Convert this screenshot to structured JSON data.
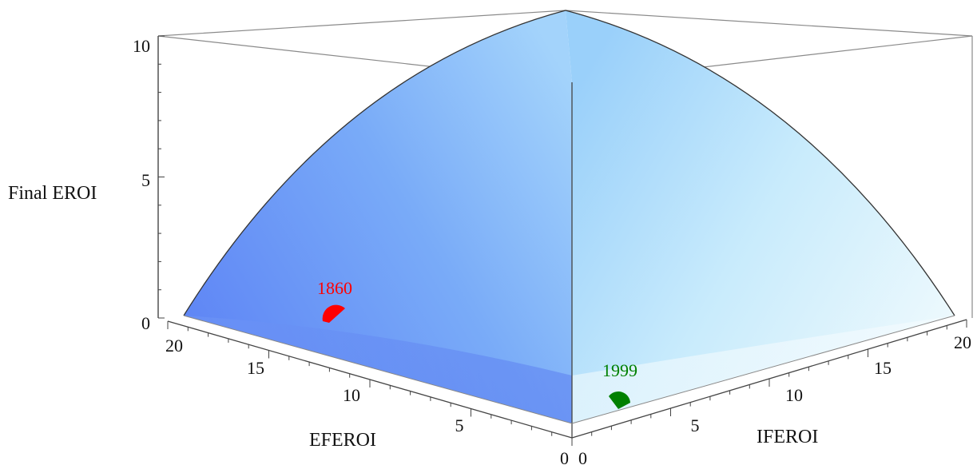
{
  "chart_data": {
    "type": "surface3d",
    "title": "",
    "axes": {
      "z": {
        "label": "Final EROI",
        "range": [
          0,
          10
        ],
        "ticks": [
          "0",
          "5",
          "10"
        ]
      },
      "efe": {
        "label": "EFEROI",
        "range": [
          0,
          20
        ],
        "ticks": [
          "0",
          "5",
          "10",
          "15",
          "20"
        ]
      },
      "ife": {
        "label": "IFEROI",
        "range": [
          0,
          20
        ],
        "ticks": [
          "0",
          "5",
          "10",
          "15",
          "20"
        ]
      }
    },
    "points": [
      {
        "label": "1860",
        "efe": 13.5,
        "ife": 0.5,
        "z": 0.2,
        "color": "#ff0000"
      },
      {
        "label": "1999",
        "efe": 0.3,
        "ife": 3.5,
        "z": 0.2,
        "color": "#008000"
      }
    ],
    "surface_colors": {
      "left_face": "#5f86f5",
      "right_face": "#d9f2fc",
      "edge": "#333333"
    }
  }
}
